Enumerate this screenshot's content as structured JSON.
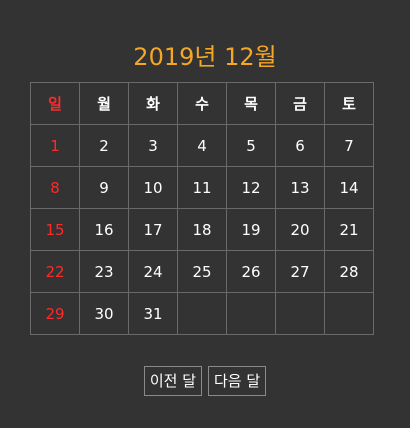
{
  "calendar": {
    "title": "2019년 12월",
    "weekdays": [
      "일",
      "월",
      "화",
      "수",
      "목",
      "금",
      "토"
    ],
    "weeks": [
      [
        "1",
        "2",
        "3",
        "4",
        "5",
        "6",
        "7"
      ],
      [
        "8",
        "9",
        "10",
        "11",
        "12",
        "13",
        "14"
      ],
      [
        "15",
        "16",
        "17",
        "18",
        "19",
        "20",
        "21"
      ],
      [
        "22",
        "23",
        "24",
        "25",
        "26",
        "27",
        "28"
      ],
      [
        "29",
        "30",
        "31",
        "",
        "",
        "",
        ""
      ]
    ],
    "colors": {
      "title": "#f5a623",
      "sunday": "#ff2a2a",
      "text": "#ffffff",
      "background": "#333333",
      "border": "#6a6a6a"
    }
  },
  "controls": {
    "prev_label": "이전 달",
    "next_label": "다음 달"
  }
}
